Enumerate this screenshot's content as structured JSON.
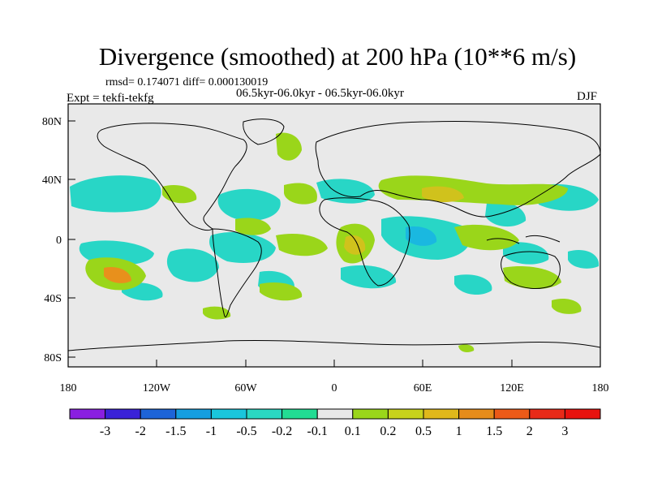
{
  "figure": {
    "title": "Divergence (smoothed) at 200 hPa (10**6 m/s)",
    "stats": "rmsd= 0.174071 diff= 0.000130019",
    "period": "06.5kyr-06.0kyr - 06.5kyr-06.0kyr",
    "experiment": "Expt = tekfi-tekfg",
    "season": "DJF"
  },
  "axes": {
    "x_ticks": [
      "180",
      "120W",
      "60W",
      "0",
      "60E",
      "120E",
      "180"
    ],
    "y_ticks": [
      "80N",
      "40N",
      "0",
      "40S",
      "80S"
    ]
  },
  "colorbar": {
    "labels": [
      "-3",
      "-2",
      "-1.5",
      "-1",
      "-0.5",
      "-0.2",
      "-0.1",
      "0.1",
      "0.2",
      "0.5",
      "1",
      "1.5",
      "2",
      "3"
    ],
    "colors": [
      "#8a1fe0",
      "#3a22d8",
      "#1d64d8",
      "#159ee0",
      "#1ac6dc",
      "#2ad8c2",
      "#22dc93",
      "#e8e8e8",
      "#9ad61a",
      "#c8d21c",
      "#e0b81a",
      "#e68c1a",
      "#ec5a18",
      "#e82a18",
      "#e8120e"
    ]
  },
  "map": {
    "land_color": "#e9e9e9",
    "neg_light": "#28d6c6",
    "neg_mid": "#1ab8e0",
    "pos_light": "#9ad61a",
    "pos_mid": "#d0c21c",
    "pos_strong": "#e8901c"
  }
}
